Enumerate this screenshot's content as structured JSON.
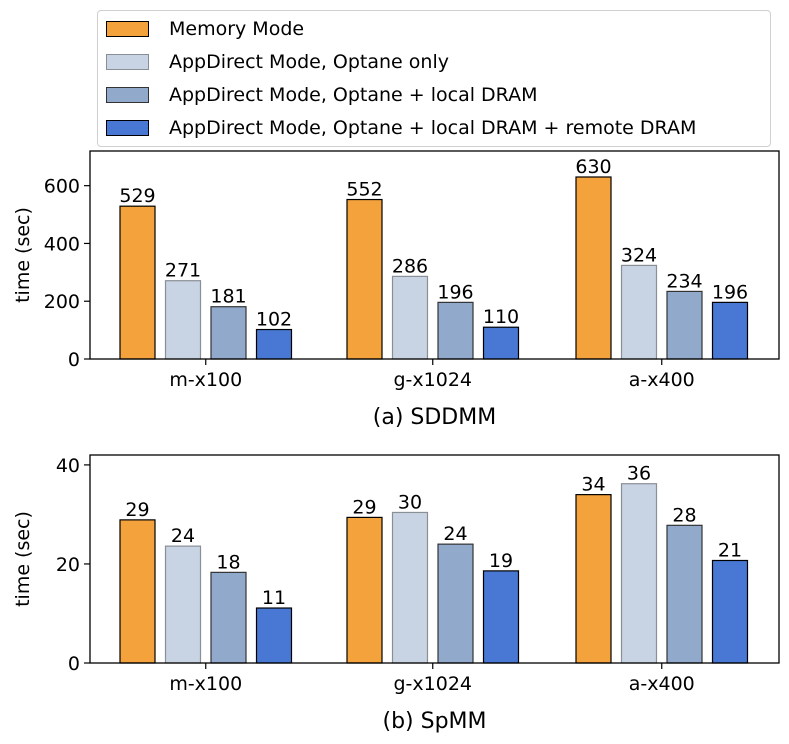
{
  "legend": {
    "items": [
      {
        "label": "Memory Mode",
        "color": "#f4a23c",
        "edge": "#000000"
      },
      {
        "label": "AppDirect Mode, Optane only",
        "color": "#c8d4e3",
        "edge": "#8a8f96"
      },
      {
        "label": "AppDirect Mode, Optane + local DRAM",
        "color": "#91a9cb",
        "edge": "#333333"
      },
      {
        "label": "AppDirect Mode, Optane + local DRAM + remote DRAM",
        "color": "#4878d4",
        "edge": "#000000"
      }
    ]
  },
  "chart_data": [
    {
      "type": "bar",
      "title": "(a) SDDMM",
      "xlabel": "",
      "ylabel": "time (sec)",
      "ylim": [
        0,
        720
      ],
      "yticks": [
        0,
        200,
        400,
        600
      ],
      "grid": false,
      "categories": [
        "m-x100",
        "g-x1024",
        "a-x400"
      ],
      "series": [
        {
          "name": "Memory Mode",
          "values": [
            529,
            552,
            630
          ],
          "labels": [
            "529",
            "552",
            "630"
          ]
        },
        {
          "name": "AppDirect Mode, Optane only",
          "values": [
            271,
            286,
            324
          ],
          "labels": [
            "271",
            "286",
            "324"
          ]
        },
        {
          "name": "AppDirect Mode, Optane + local DRAM",
          "values": [
            181,
            196,
            234
          ],
          "labels": [
            "181",
            "196",
            "234"
          ]
        },
        {
          "name": "AppDirect Mode, Optane + local DRAM + remote DRAM",
          "values": [
            102,
            110,
            196
          ],
          "labels": [
            "102",
            "110",
            "196"
          ]
        }
      ]
    },
    {
      "type": "bar",
      "title": "(b) SpMM",
      "xlabel": "",
      "ylabel": "time (sec)",
      "ylim": [
        0,
        42
      ],
      "yticks": [
        0,
        20,
        40
      ],
      "grid": false,
      "categories": [
        "m-x100",
        "g-x1024",
        "a-x400"
      ],
      "series": [
        {
          "name": "Memory Mode",
          "values": [
            28.9,
            29.4,
            34.0
          ],
          "labels": [
            "29",
            "29",
            "34"
          ]
        },
        {
          "name": "AppDirect Mode, Optane only",
          "values": [
            23.6,
            30.4,
            36.2
          ],
          "labels": [
            "24",
            "30",
            "36"
          ]
        },
        {
          "name": "AppDirect Mode, Optane + local DRAM",
          "values": [
            18.3,
            24.0,
            27.8
          ],
          "labels": [
            "18",
            "24",
            "28"
          ]
        },
        {
          "name": "AppDirect Mode, Optane + local DRAM + remote DRAM",
          "values": [
            11.1,
            18.6,
            20.7
          ],
          "labels": [
            "11",
            "19",
            "21"
          ]
        }
      ]
    }
  ]
}
